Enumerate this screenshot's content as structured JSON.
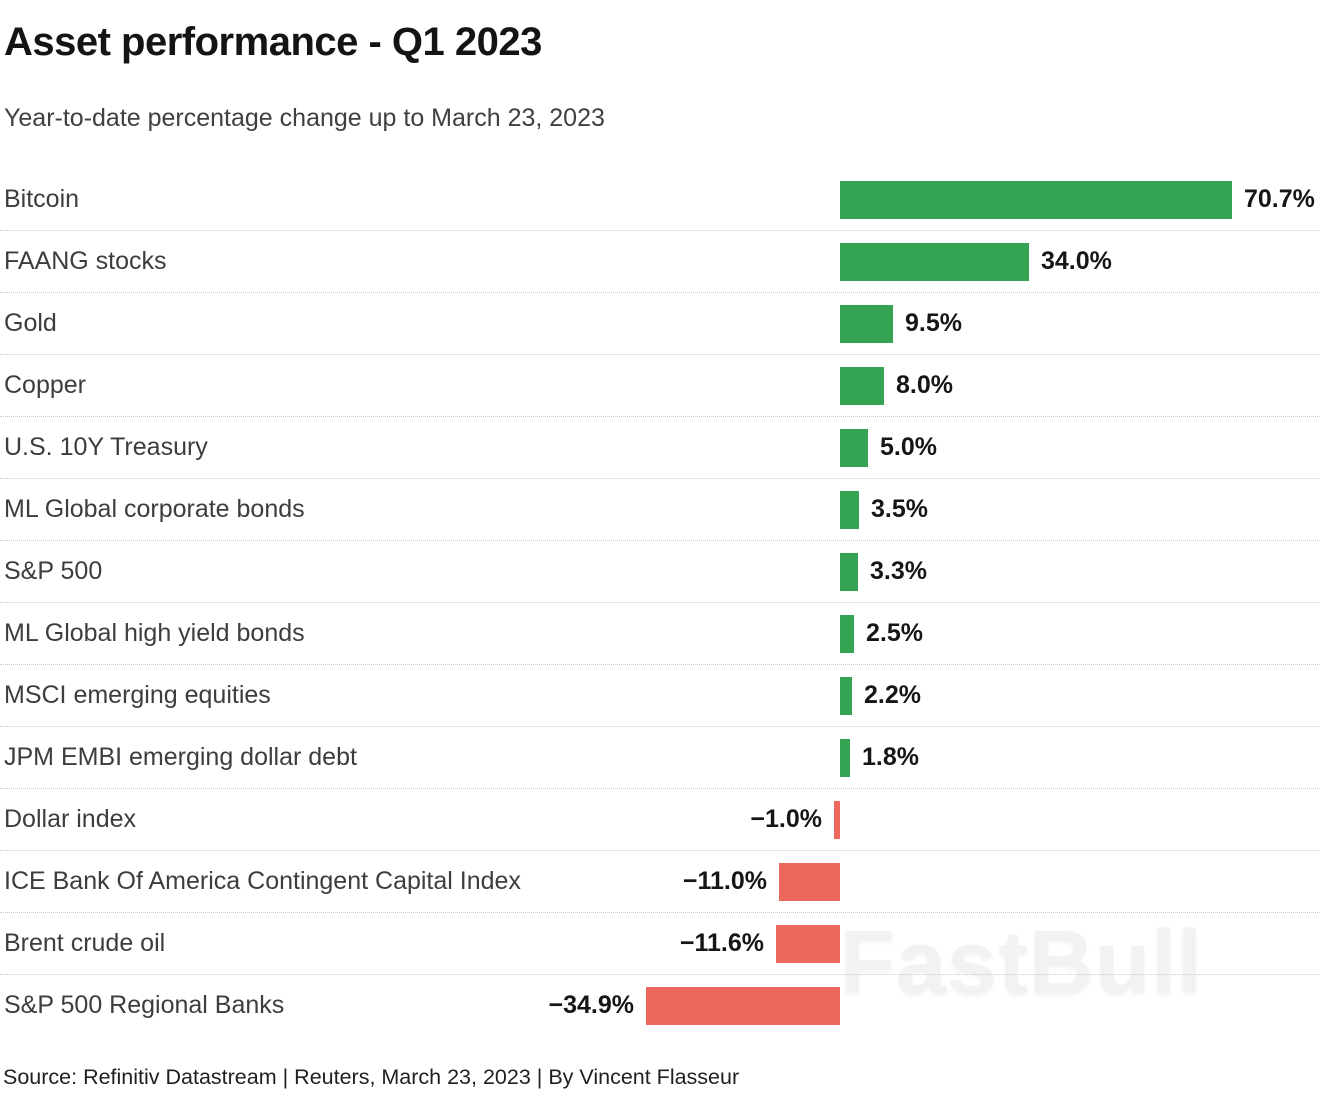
{
  "header": {
    "title": "Asset performance - Q1 2023",
    "subtitle": "Year-to-date percentage change up to March 23, 2023"
  },
  "footer": {
    "source_line": "Source: Refinitiv Datastream | Reuters, March 23, 2023 | By Vincent Flasseur"
  },
  "watermark": "FastBull",
  "colors": {
    "positive_bar": "#34a353",
    "negative_bar": "#ec675c",
    "title_text": "#141414",
    "subtitle_text": "#404040",
    "category_text": "#3d3d3d",
    "value_text": "#161616",
    "separator": "#c9c9c9",
    "watermark_text": "#f2f2f2"
  },
  "chart_data": {
    "type": "bar",
    "orientation": "horizontal",
    "title": "Asset performance - Q1 2023",
    "subtitle": "Year-to-date percentage change up to March 23, 2023",
    "unit": "%",
    "xlabel": "",
    "ylabel": "",
    "xlim": [
      -40,
      75
    ],
    "baseline": 0,
    "grid": "dotted row separators only",
    "legend": "none",
    "categories": [
      "Bitcoin",
      "FAANG stocks",
      "Gold",
      "Copper",
      "U.S. 10Y Treasury",
      "ML Global corporate bonds",
      "S&P 500",
      "ML Global high yield bonds",
      "MSCI emerging equities",
      "JPM EMBI emerging dollar debt",
      "Dollar index",
      "ICE Bank Of America Contingent Capital Index",
      "Brent crude oil",
      "S&P 500 Regional Banks"
    ],
    "values": [
      70.7,
      34.0,
      9.5,
      8.0,
      5.0,
      3.5,
      3.3,
      2.5,
      2.2,
      1.8,
      -1.0,
      -11.0,
      -11.6,
      -34.9
    ],
    "value_labels": [
      "70.7%",
      "34.0%",
      "9.5%",
      "8.0%",
      "5.0%",
      "3.5%",
      "3.3%",
      "2.5%",
      "2.2%",
      "1.8%",
      "−1.0%",
      "−11.0%",
      "−11.6%",
      "−34.9%"
    ],
    "positive_color": "#34a353",
    "negative_color": "#ec675c"
  }
}
